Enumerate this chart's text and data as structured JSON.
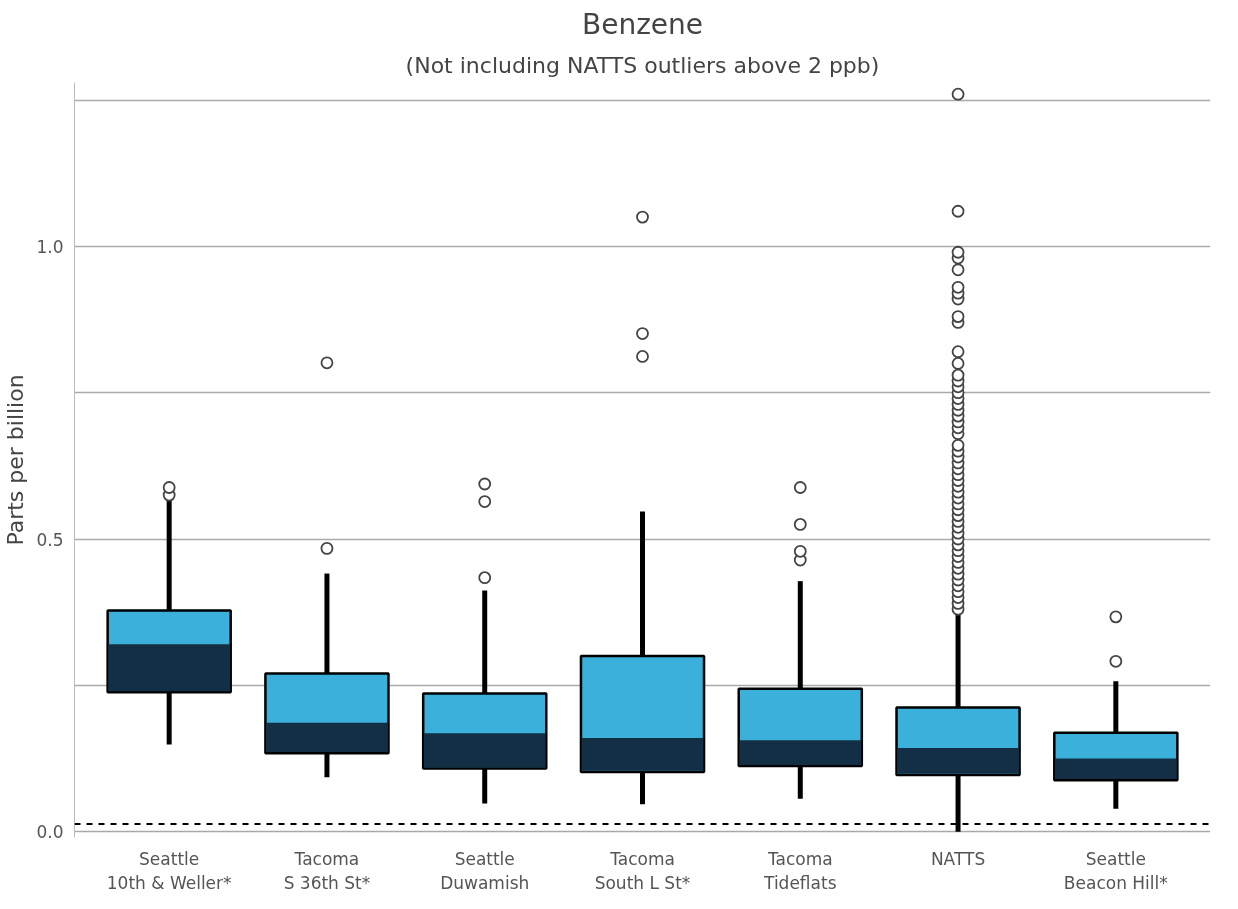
{
  "chart_data": {
    "type": "box",
    "title": "Benzene",
    "subtitle": "(Not including NATTS outliers above 2 ppb)",
    "ylabel": "Parts per billion",
    "categories": [
      "Seattle\n10th & Weller*",
      "Tacoma\nS 36th St*",
      "Seattle\nDuwamish",
      "Tacoma\nSouth L St*",
      "Tacoma\nTideflats",
      "NATTS",
      "Seattle\nBeacon Hill*"
    ],
    "colors": [
      "#132f45",
      "#132f45",
      "#132f45",
      "#132f45",
      "#132f45",
      "#132f45",
      "#132f45"
    ],
    "series": [
      {
        "color": "#3ab0da",
        "boxes": [
          {
            "low": 0.149,
            "q1": 0.238,
            "median": 0.32,
            "q3": 0.378,
            "high": 0.565,
            "outliers": [
              0.575,
              0.588
            ]
          },
          {
            "low": 0.093,
            "q1": 0.134,
            "median": 0.186,
            "q3": 0.27,
            "high": 0.441,
            "outliers": [
              0.484,
              0.801
            ]
          },
          {
            "low": 0.048,
            "q1": 0.108,
            "median": 0.168,
            "q3": 0.236,
            "high": 0.412,
            "outliers": [
              0.434,
              0.564,
              0.594
            ]
          },
          {
            "low": 0.047,
            "q1": 0.102,
            "median": 0.16,
            "q3": 0.3,
            "high": 0.547,
            "outliers": [
              0.812,
              0.851,
              1.05
            ]
          },
          {
            "low": 0.056,
            "q1": 0.112,
            "median": 0.156,
            "q3": 0.244,
            "high": 0.428,
            "outliers": [
              0.464,
              0.479,
              0.525,
              0.588
            ]
          },
          {
            "low": 0.0,
            "q1": 0.097,
            "median": 0.143,
            "q3": 0.212,
            "high": 0.374,
            "outliers": [
              0.38,
              0.39,
              0.4,
              0.41,
              0.42,
              0.43,
              0.44,
              0.45,
              0.46,
              0.47,
              0.48,
              0.49,
              0.5,
              0.51,
              0.52,
              0.53,
              0.54,
              0.55,
              0.56,
              0.57,
              0.58,
              0.59,
              0.6,
              0.61,
              0.62,
              0.63,
              0.64,
              0.65,
              0.66,
              0.68,
              0.69,
              0.7,
              0.71,
              0.72,
              0.73,
              0.74,
              0.75,
              0.76,
              0.77,
              0.78,
              0.8,
              0.82,
              0.87,
              0.88,
              0.91,
              0.92,
              0.93,
              0.96,
              0.98,
              0.99,
              1.06,
              1.26
            ]
          },
          {
            "low": 0.039,
            "q1": 0.088,
            "median": 0.125,
            "q3": 0.169,
            "high": 0.257,
            "outliers": [
              0.291,
              0.367
            ]
          }
        ]
      }
    ],
    "ylim": [
      -0.01,
      1.28
    ],
    "yticks": [
      {
        "value": 0,
        "label": "0.0"
      },
      {
        "value": 0.25,
        "label": null
      },
      0.5,
      {
        "value": 0.75,
        "label": null
      },
      {
        "value": 1,
        "label": "1.0"
      },
      {
        "value": 1.25,
        "label": null
      }
    ],
    "grid": "y",
    "marker": "circle",
    "ref_lines": [
      {
        "axis": "y",
        "value": 0.013,
        "color": "#000000",
        "line_style": "dashed"
      }
    ]
  }
}
